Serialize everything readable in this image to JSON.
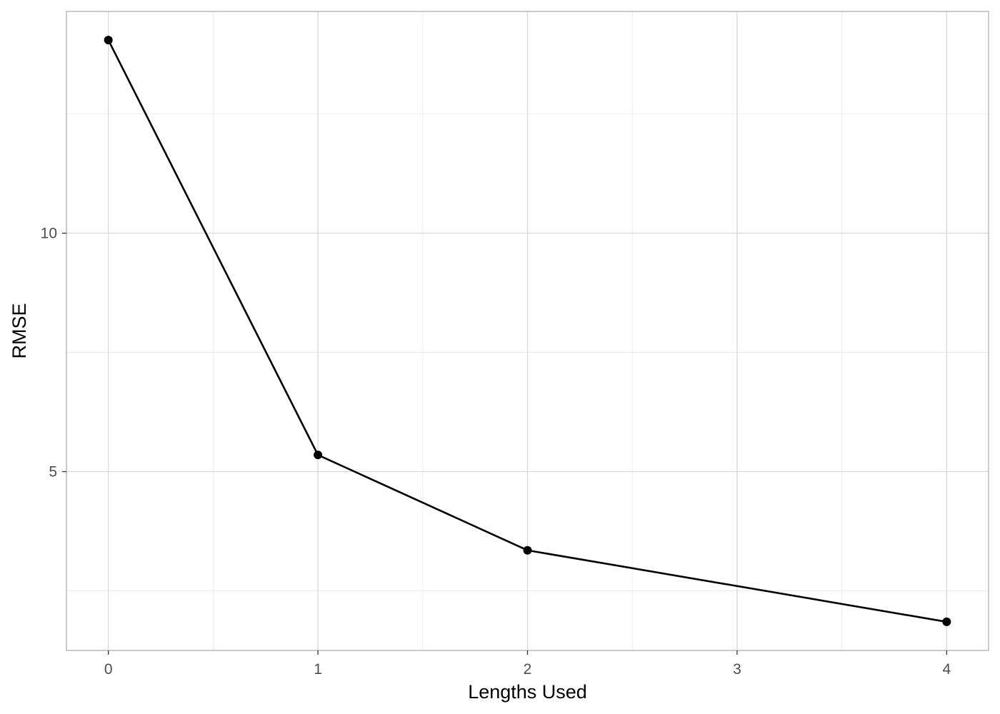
{
  "chart_data": {
    "type": "line",
    "title": "",
    "xlabel": "Lengths Used",
    "ylabel": "RMSE",
    "xlim": [
      -0.2,
      4.2
    ],
    "ylim": [
      1.25,
      14.65
    ],
    "x_major_ticks": [
      0,
      1,
      2,
      3,
      4
    ],
    "x_minor_ticks": [
      0.5,
      1.5,
      2.5,
      3.5
    ],
    "y_major_ticks": [
      5,
      10
    ],
    "y_minor_ticks": [
      2.5,
      7.5,
      12.5
    ],
    "x_tick_labels": [
      "0",
      "1",
      "2",
      "3",
      "4"
    ],
    "y_tick_labels": [
      "5",
      "10"
    ],
    "grid": true,
    "legend": "none",
    "series": [
      {
        "x": [
          0,
          1,
          2,
          4
        ],
        "values": [
          14.05,
          5.35,
          3.35,
          1.85
        ]
      }
    ],
    "colors": {
      "line": "#000000",
      "point": "#000000",
      "grid_major": "#d9d9d9",
      "grid_minor": "#ebebeb",
      "panel_border": "#b3b3b3",
      "tick_label": "#4d4d4d",
      "axis_title": "#000000"
    }
  }
}
